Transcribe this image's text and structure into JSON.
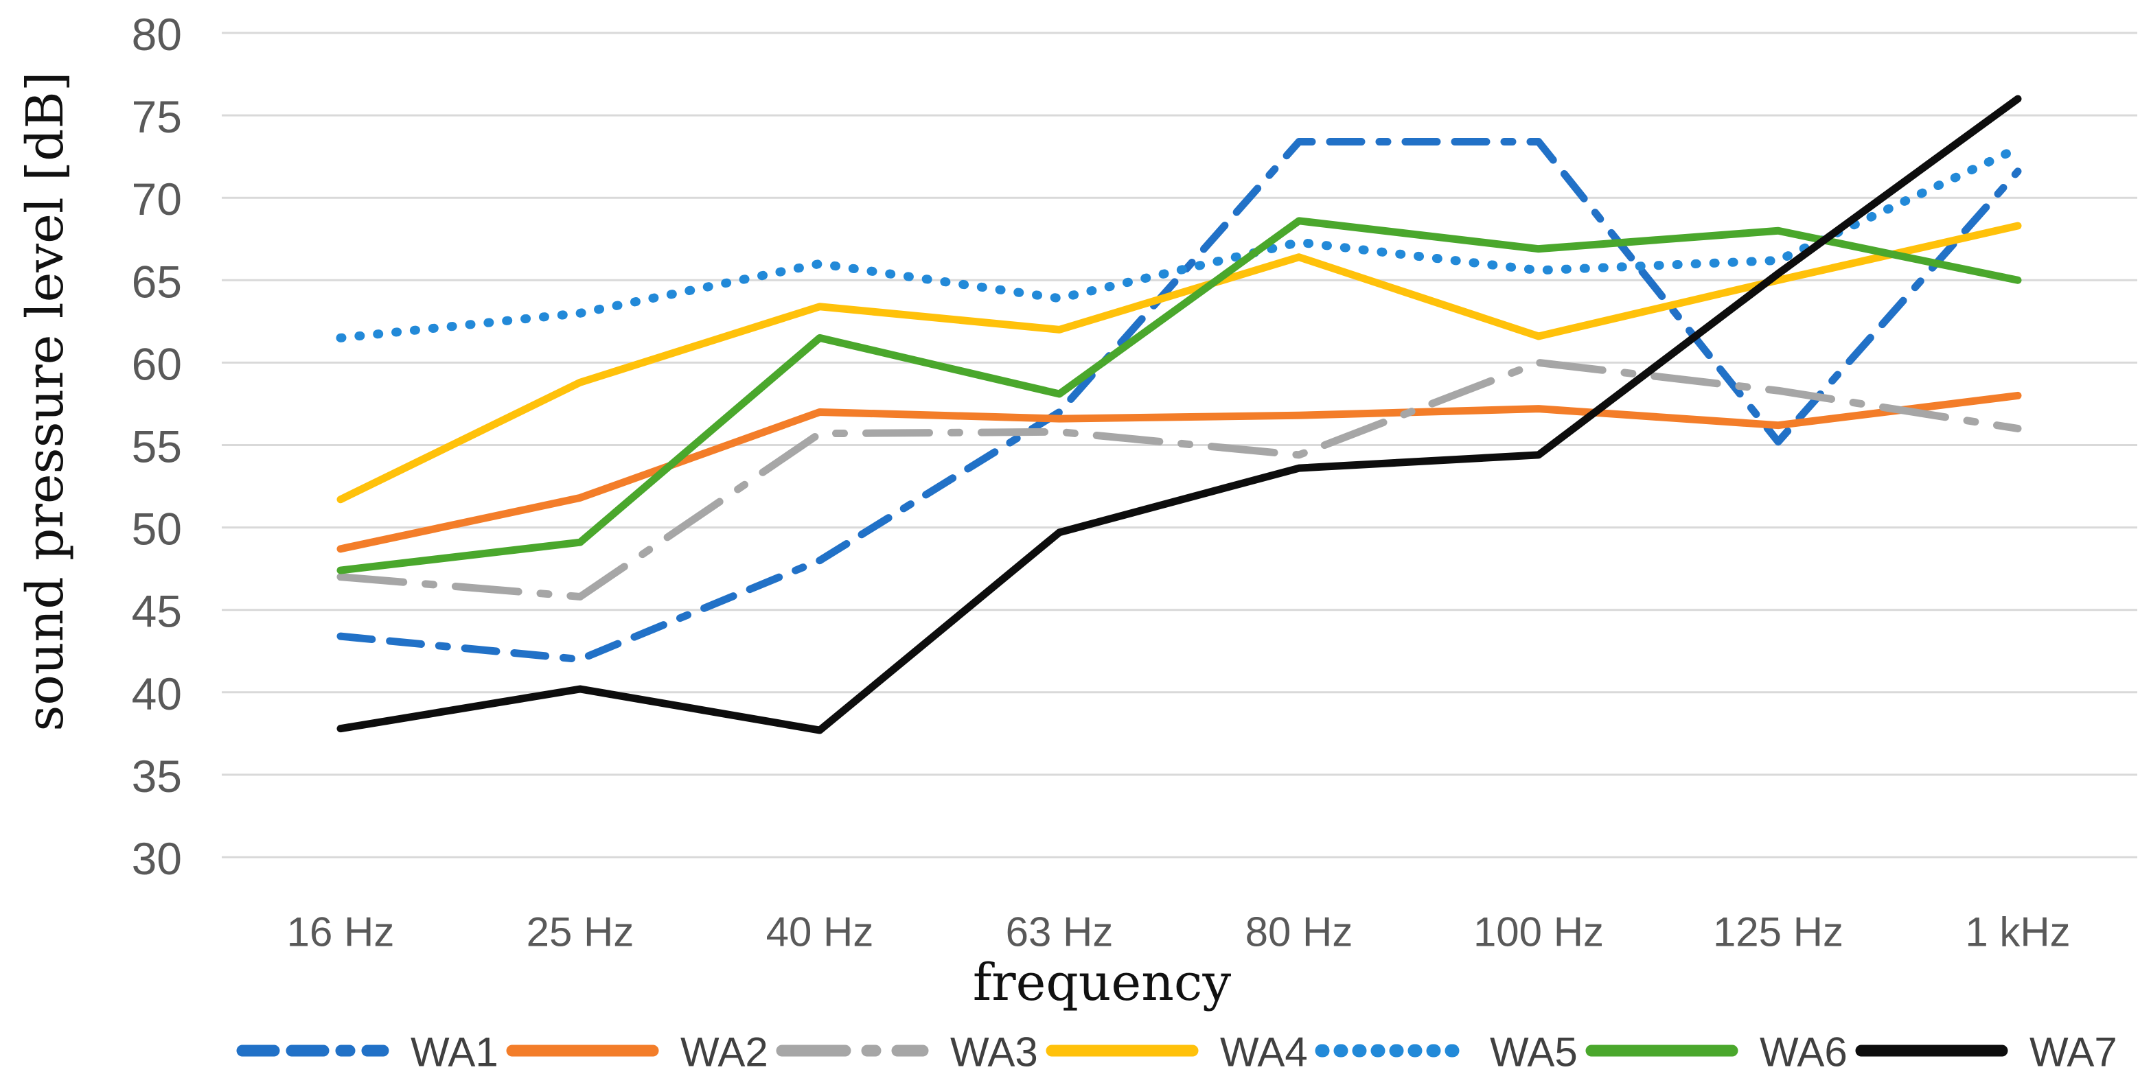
{
  "chart_data": {
    "type": "line",
    "title": "",
    "xlabel": "frequency",
    "ylabel": "sound pressure level [dB]",
    "ylim": [
      30,
      80
    ],
    "ytick_step": 5,
    "ytick_labels": [
      "80",
      "75",
      "70",
      "65",
      "60",
      "55",
      "50",
      "45",
      "40",
      "35",
      "30"
    ],
    "categories": [
      "16 Hz",
      "25 Hz",
      "40 Hz",
      "63 Hz",
      "80 Hz",
      "100 Hz",
      "125 Hz",
      "1 kHz"
    ],
    "grid": "horizontal",
    "gridline_color": "#d9d9d9",
    "tick_label_color": "#595959",
    "legend_position": "bottom",
    "series": [
      {
        "name": "WA1",
        "color": "#2171c7",
        "line_style": "dashed",
        "values": [
          43.4,
          42.0,
          48.0,
          57.0,
          73.4,
          73.4,
          55.2,
          71.6
        ]
      },
      {
        "name": "WA2",
        "color": "#f37d29",
        "line_style": "solid",
        "values": [
          48.7,
          51.8,
          57.0,
          56.6,
          56.8,
          57.2,
          56.2,
          58.0
        ]
      },
      {
        "name": "WA3",
        "color": "#a6a6a6",
        "line_style": "dash-dot",
        "values": [
          47.0,
          45.8,
          55.7,
          55.8,
          54.4,
          60.0,
          58.3,
          56.0
        ]
      },
      {
        "name": "WA4",
        "color": "#ffc10a",
        "line_style": "solid",
        "values": [
          51.7,
          58.8,
          63.4,
          62.0,
          66.4,
          61.6,
          65.0,
          68.3
        ]
      },
      {
        "name": "WA5",
        "color": "#2289d8",
        "line_style": "dotted",
        "values": [
          61.5,
          63.0,
          66.0,
          63.9,
          67.3,
          65.6,
          66.2,
          73.0
        ]
      },
      {
        "name": "WA6",
        "color": "#4aa72c",
        "line_style": "solid",
        "values": [
          47.4,
          49.1,
          61.5,
          58.1,
          68.6,
          66.9,
          68.0,
          65.0
        ]
      },
      {
        "name": "WA7",
        "color": "#0d0d0d",
        "line_style": "solid",
        "values": [
          37.8,
          40.2,
          37.7,
          49.7,
          53.6,
          54.4,
          65.4,
          76.0
        ]
      }
    ]
  }
}
